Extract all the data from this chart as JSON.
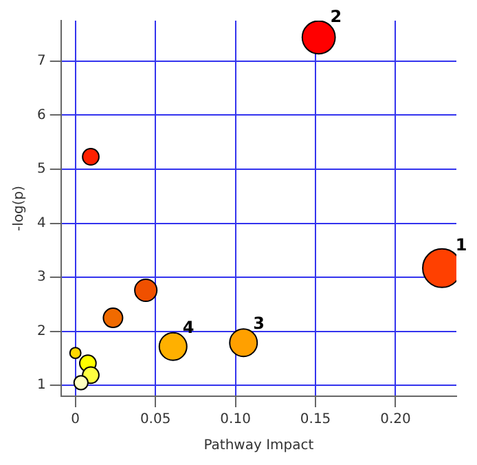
{
  "chart_data": {
    "type": "bubble",
    "xlabel": "Pathway Impact",
    "ylabel": "-log(p)",
    "x": [
      0.152,
      0.0096,
      0.229,
      0.044,
      0.0235,
      0.061,
      0.105,
      0,
      0.0078,
      0.0096,
      0.0035
    ],
    "values": [
      7.44,
      5.23,
      3.17,
      2.76,
      2.25,
      1.72,
      1.79,
      1.6,
      1.41,
      1.19,
      1.05
    ],
    "sizes": [
      0.73,
      0.18,
      1,
      0.33,
      0.25,
      0.51,
      0.51,
      0.08,
      0.18,
      0.18,
      0.13
    ],
    "colors": [
      "#ff0000",
      "#ff2000",
      "#ff4000",
      "#f05000",
      "#f06a00",
      "#ffb000",
      "#ffa000",
      "#ffd700",
      "#ffff00",
      "#ffff40",
      "#ffffc0"
    ],
    "xlim": [
      -0.009,
      0.238
    ],
    "ylim": [
      0.8,
      7.75
    ],
    "xticks": [
      {
        "value": 0,
        "label": "0"
      },
      {
        "value": 0.05,
        "label": "0.05"
      },
      {
        "value": 0.1,
        "label": "0.10"
      },
      {
        "value": 0.15,
        "label": "0.15"
      },
      {
        "value": 0.2,
        "label": "0.20"
      }
    ],
    "yticks": [
      1,
      2,
      3,
      4,
      5,
      6,
      7
    ],
    "grid": true,
    "legend": false,
    "annotations": [
      {
        "text": "1",
        "x": 0.229,
        "y": 3.17
      },
      {
        "text": "2",
        "x": 0.152,
        "y": 7.44
      },
      {
        "text": "3",
        "x": 0.105,
        "y": 1.79
      },
      {
        "text": "4",
        "x": 0.061,
        "y": 1.72
      }
    ]
  }
}
